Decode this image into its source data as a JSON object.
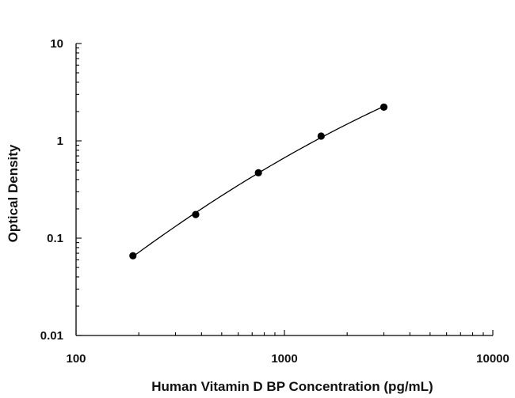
{
  "chart_data": {
    "type": "scatter",
    "title": "",
    "xlabel": "Human Vitamin D BP Concentration (pg/mL)",
    "ylabel": "Optical Density",
    "x_scale": "log",
    "y_scale": "log",
    "xlim": [
      100,
      10000
    ],
    "ylim": [
      0.01,
      10
    ],
    "x_ticks": [
      "100",
      "1000",
      "10000"
    ],
    "y_ticks": [
      "10",
      "1",
      "0.1",
      "0.01"
    ],
    "grid": false,
    "legend": "none",
    "series": [
      {
        "x": [
          187.5,
          375,
          750,
          1500,
          3000
        ],
        "y": [
          0.066,
          0.175,
          0.47,
          1.12,
          2.22
        ],
        "fit_curve": true,
        "color": "#000000"
      }
    ]
  }
}
